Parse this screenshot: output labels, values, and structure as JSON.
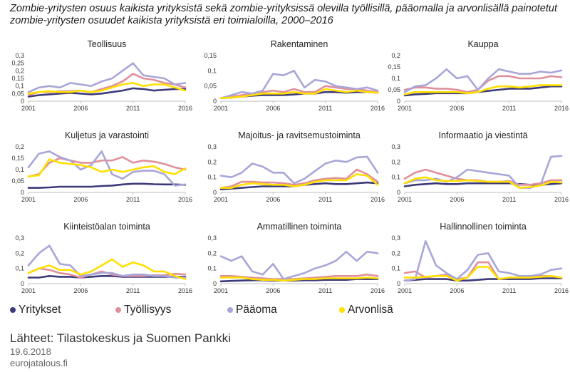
{
  "title": "Zombie-yritysten osuus kaikista yrityksistä sekä zombie-yrityksissä olevilla työllisillä, pääomalla ja arvonlisällä painotetut zombie-yritysten osuudet kaikista yrityksistä eri toimialoilla, 2000–2016",
  "legend": [
    {
      "label": "Yritykset",
      "color": "#3d3a7a"
    },
    {
      "label": "Työllisyys",
      "color": "#e0909a"
    },
    {
      "label": "Pääoma",
      "color": "#a8a6d8"
    },
    {
      "label": "Arvonlisä",
      "color": "#ffe000"
    }
  ],
  "sources": "Lähteet: Tilastokeskus ja Suomen Pankki",
  "date": "19.6.2018",
  "site": "eurojatalous.fi",
  "chart_data": [
    {
      "type": "line",
      "title": "Teollisuus",
      "x": [
        2001,
        2002,
        2003,
        2004,
        2005,
        2006,
        2007,
        2008,
        2009,
        2010,
        2011,
        2012,
        2013,
        2014,
        2015,
        2016
      ],
      "xticks": [
        "2001",
        "2006",
        "2011",
        "2016"
      ],
      "ylim": [
        0,
        0.3
      ],
      "yticks": [
        "0",
        "0,05",
        "0,1",
        "0,15",
        "0,2",
        "0,25",
        "0,3"
      ],
      "series": [
        {
          "name": "Yritykset",
          "values": [
            0.03,
            0.04,
            0.045,
            0.05,
            0.055,
            0.05,
            0.045,
            0.05,
            0.06,
            0.07,
            0.085,
            0.08,
            0.07,
            0.075,
            0.08,
            0.08
          ]
        },
        {
          "name": "Työllisyys",
          "values": [
            0.04,
            0.06,
            0.06,
            0.065,
            0.065,
            0.07,
            0.06,
            0.08,
            0.1,
            0.13,
            0.18,
            0.15,
            0.14,
            0.12,
            0.11,
            0.09
          ]
        },
        {
          "name": "Pääoma",
          "values": [
            0.06,
            0.09,
            0.1,
            0.09,
            0.12,
            0.11,
            0.1,
            0.13,
            0.15,
            0.2,
            0.25,
            0.17,
            0.16,
            0.15,
            0.11,
            0.12
          ]
        },
        {
          "name": "Arvonlisä",
          "values": [
            0.05,
            0.06,
            0.065,
            0.06,
            0.06,
            0.07,
            0.06,
            0.07,
            0.09,
            0.11,
            0.12,
            0.1,
            0.11,
            0.11,
            0.09,
            0.07
          ]
        }
      ]
    },
    {
      "type": "line",
      "title": "Rakentaminen",
      "x": [
        2001,
        2002,
        2003,
        2004,
        2005,
        2006,
        2007,
        2008,
        2009,
        2010,
        2011,
        2012,
        2013,
        2014,
        2015,
        2016
      ],
      "xticks": [
        "2001",
        "2006",
        "2011",
        "2016"
      ],
      "ylim": [
        0,
        0.15
      ],
      "yticks": [
        "0",
        "0,05",
        "0,1",
        "0,15"
      ],
      "series": [
        {
          "name": "Yritykset",
          "values": [
            0.01,
            0.012,
            0.015,
            0.018,
            0.02,
            0.02,
            0.02,
            0.022,
            0.025,
            0.025,
            0.03,
            0.03,
            0.028,
            0.03,
            0.03,
            0.028
          ]
        },
        {
          "name": "Työllisyys",
          "values": [
            0.01,
            0.015,
            0.02,
            0.025,
            0.03,
            0.035,
            0.03,
            0.04,
            0.03,
            0.03,
            0.05,
            0.045,
            0.04,
            0.04,
            0.035,
            0.03
          ]
        },
        {
          "name": "Pääoma",
          "values": [
            0.01,
            0.02,
            0.03,
            0.025,
            0.035,
            0.09,
            0.085,
            0.1,
            0.045,
            0.07,
            0.065,
            0.05,
            0.045,
            0.04,
            0.045,
            0.035
          ]
        },
        {
          "name": "Arvonlisä",
          "values": [
            0.01,
            0.012,
            0.015,
            0.02,
            0.025,
            0.025,
            0.025,
            0.03,
            0.025,
            0.025,
            0.04,
            0.035,
            0.03,
            0.035,
            0.03,
            0.028
          ]
        }
      ]
    },
    {
      "type": "line",
      "title": "Kauppa",
      "x": [
        2001,
        2002,
        2003,
        2004,
        2005,
        2006,
        2007,
        2008,
        2009,
        2010,
        2011,
        2012,
        2013,
        2014,
        2015,
        2016
      ],
      "xticks": [
        "2001",
        "2006",
        "2011",
        "2016"
      ],
      "ylim": [
        0,
        0.2
      ],
      "yticks": [
        "0",
        "0,05",
        "0,1",
        "0,15",
        "0,2"
      ],
      "series": [
        {
          "name": "Yritykset",
          "values": [
            0.025,
            0.03,
            0.032,
            0.035,
            0.035,
            0.035,
            0.035,
            0.04,
            0.045,
            0.05,
            0.055,
            0.055,
            0.055,
            0.06,
            0.065,
            0.065
          ]
        },
        {
          "name": "Työllisyys",
          "values": [
            0.05,
            0.06,
            0.06,
            0.055,
            0.055,
            0.05,
            0.04,
            0.05,
            0.09,
            0.11,
            0.11,
            0.1,
            0.1,
            0.1,
            0.11,
            0.105
          ]
        },
        {
          "name": "Pääoma",
          "values": [
            0.04,
            0.065,
            0.07,
            0.1,
            0.14,
            0.1,
            0.11,
            0.05,
            0.1,
            0.14,
            0.13,
            0.12,
            0.12,
            0.13,
            0.125,
            0.135
          ]
        },
        {
          "name": "Arvonlisä",
          "values": [
            0.03,
            0.04,
            0.04,
            0.04,
            0.04,
            0.04,
            0.035,
            0.04,
            0.055,
            0.065,
            0.065,
            0.06,
            0.065,
            0.07,
            0.07,
            0.07
          ]
        }
      ]
    },
    {
      "type": "line",
      "title": "Kuljetus ja varastointi",
      "x": [
        2001,
        2002,
        2003,
        2004,
        2005,
        2006,
        2007,
        2008,
        2009,
        2010,
        2011,
        2012,
        2013,
        2014,
        2015,
        2016
      ],
      "xticks": [
        "2001",
        "2006",
        "2011",
        "2016"
      ],
      "ylim": [
        0,
        0.2
      ],
      "yticks": [
        "0",
        "0,05",
        "0,1",
        "0,15",
        "0,2"
      ],
      "series": [
        {
          "name": "Yritykset",
          "values": [
            0.02,
            0.02,
            0.022,
            0.025,
            0.025,
            0.025,
            0.025,
            0.028,
            0.03,
            0.035,
            0.038,
            0.038,
            0.036,
            0.035,
            0.035,
            0.033
          ]
        },
        {
          "name": "Työllisyys",
          "values": [
            0.07,
            0.08,
            0.13,
            0.15,
            0.14,
            0.13,
            0.13,
            0.14,
            0.14,
            0.155,
            0.13,
            0.14,
            0.135,
            0.125,
            0.11,
            0.1
          ]
        },
        {
          "name": "Pääoma",
          "values": [
            0.11,
            0.17,
            0.18,
            0.155,
            0.14,
            0.1,
            0.12,
            0.18,
            0.08,
            0.06,
            0.09,
            0.095,
            0.095,
            0.08,
            0.03,
            0.035
          ]
        },
        {
          "name": "Arvonlisä",
          "values": [
            0.07,
            0.075,
            0.145,
            0.13,
            0.125,
            0.12,
            0.11,
            0.09,
            0.1,
            0.09,
            0.1,
            0.11,
            0.115,
            0.09,
            0.08,
            0.105
          ]
        }
      ]
    },
    {
      "type": "line",
      "title": "Majoitus- ja ravitsemustoiminta",
      "x": [
        2001,
        2002,
        2003,
        2004,
        2005,
        2006,
        2007,
        2008,
        2009,
        2010,
        2011,
        2012,
        2013,
        2014,
        2015,
        2016
      ],
      "xticks": [
        "2001",
        "2006",
        "2011",
        "2016"
      ],
      "ylim": [
        0,
        0.3
      ],
      "yticks": [
        "0",
        "0,1",
        "0,2",
        "0,3"
      ],
      "series": [
        {
          "name": "Yritykset",
          "values": [
            0.02,
            0.025,
            0.03,
            0.035,
            0.04,
            0.04,
            0.04,
            0.04,
            0.05,
            0.055,
            0.06,
            0.055,
            0.055,
            0.06,
            0.065,
            0.06
          ]
        },
        {
          "name": "Työllisyys",
          "values": [
            0.03,
            0.04,
            0.07,
            0.07,
            0.065,
            0.065,
            0.06,
            0.05,
            0.06,
            0.08,
            0.09,
            0.095,
            0.09,
            0.15,
            0.12,
            0.07
          ]
        },
        {
          "name": "Pääoma",
          "values": [
            0.11,
            0.1,
            0.13,
            0.19,
            0.17,
            0.13,
            0.13,
            0.06,
            0.09,
            0.14,
            0.19,
            0.21,
            0.2,
            0.23,
            0.235,
            0.13
          ]
        },
        {
          "name": "Arvonlisä",
          "values": [
            0.03,
            0.03,
            0.05,
            0.06,
            0.055,
            0.05,
            0.05,
            0.04,
            0.05,
            0.07,
            0.08,
            0.08,
            0.08,
            0.12,
            0.11,
            0.05
          ]
        }
      ]
    },
    {
      "type": "line",
      "title": "Informaatio ja viestintä",
      "x": [
        2001,
        2002,
        2003,
        2004,
        2005,
        2006,
        2007,
        2008,
        2009,
        2010,
        2011,
        2012,
        2013,
        2014,
        2015,
        2016
      ],
      "xticks": [
        "2001",
        "2006",
        "2011",
        "2016"
      ],
      "ylim": [
        0,
        0.3
      ],
      "yticks": [
        "0",
        "0,1",
        "0,2",
        "0,3"
      ],
      "series": [
        {
          "name": "Yritykset",
          "values": [
            0.04,
            0.05,
            0.055,
            0.06,
            0.055,
            0.055,
            0.06,
            0.06,
            0.06,
            0.06,
            0.06,
            0.055,
            0.05,
            0.05,
            0.055,
            0.06
          ]
        },
        {
          "name": "Työllisyys",
          "values": [
            0.09,
            0.13,
            0.15,
            0.13,
            0.11,
            0.09,
            0.08,
            0.08,
            0.07,
            0.07,
            0.075,
            0.05,
            0.05,
            0.06,
            0.08,
            0.08
          ]
        },
        {
          "name": "Pääoma",
          "values": [
            0.06,
            0.08,
            0.08,
            0.09,
            0.07,
            0.1,
            0.15,
            0.14,
            0.13,
            0.12,
            0.11,
            0.03,
            0.03,
            0.05,
            0.235,
            0.24
          ]
        },
        {
          "name": "Arvonlisä",
          "values": [
            0.06,
            0.09,
            0.1,
            0.08,
            0.075,
            0.075,
            0.08,
            0.075,
            0.07,
            0.07,
            0.07,
            0.03,
            0.035,
            0.045,
            0.07,
            0.065
          ]
        }
      ]
    },
    {
      "type": "line",
      "title": "Kiinteistöalan toiminta",
      "x": [
        2001,
        2002,
        2003,
        2004,
        2005,
        2006,
        2007,
        2008,
        2009,
        2010,
        2011,
        2012,
        2013,
        2014,
        2015,
        2016
      ],
      "xticks": [
        "2001",
        "2006",
        "2011",
        "2016"
      ],
      "ylim": [
        0,
        0.3
      ],
      "yticks": [
        "0",
        "0,1",
        "0,2",
        "0,3"
      ],
      "series": [
        {
          "name": "Yritykset",
          "values": [
            0.04,
            0.04,
            0.05,
            0.045,
            0.045,
            0.04,
            0.045,
            0.05,
            0.05,
            0.045,
            0.045,
            0.045,
            0.045,
            0.045,
            0.045,
            0.045
          ]
        },
        {
          "name": "Työllisyys",
          "values": [
            0.07,
            0.1,
            0.09,
            0.07,
            0.06,
            0.04,
            0.06,
            0.08,
            0.06,
            0.05,
            0.05,
            0.05,
            0.055,
            0.055,
            0.065,
            0.06
          ]
        },
        {
          "name": "Pääoma",
          "values": [
            0.12,
            0.2,
            0.25,
            0.13,
            0.12,
            0.05,
            0.06,
            0.07,
            0.07,
            0.05,
            0.06,
            0.06,
            0.05,
            0.05,
            0.04,
            0.04
          ]
        },
        {
          "name": "Arvonlisä",
          "values": [
            0.07,
            0.1,
            0.12,
            0.09,
            0.09,
            0.06,
            0.08,
            0.12,
            0.16,
            0.11,
            0.14,
            0.12,
            0.08,
            0.08,
            0.05,
            0.03
          ]
        }
      ]
    },
    {
      "type": "line",
      "title": "Ammatillinen toiminta",
      "x": [
        2001,
        2002,
        2003,
        2004,
        2005,
        2006,
        2007,
        2008,
        2009,
        2010,
        2011,
        2012,
        2013,
        2014,
        2015,
        2016
      ],
      "xticks": [
        "2001",
        "2006",
        "2011",
        "2016"
      ],
      "ylim": [
        0,
        0.3
      ],
      "yticks": [
        "0",
        "0,1",
        "0,2",
        "0,3"
      ],
      "series": [
        {
          "name": "Yritykset",
          "values": [
            0.015,
            0.018,
            0.02,
            0.022,
            0.022,
            0.02,
            0.02,
            0.02,
            0.022,
            0.022,
            0.025,
            0.025,
            0.025,
            0.03,
            0.03,
            0.03
          ]
        },
        {
          "name": "Työllisyys",
          "values": [
            0.05,
            0.05,
            0.045,
            0.04,
            0.035,
            0.03,
            0.03,
            0.03,
            0.035,
            0.04,
            0.045,
            0.05,
            0.05,
            0.05,
            0.06,
            0.05
          ]
        },
        {
          "name": "Pääoma",
          "values": [
            0.18,
            0.15,
            0.18,
            0.08,
            0.06,
            0.13,
            0.03,
            0.05,
            0.07,
            0.1,
            0.12,
            0.15,
            0.21,
            0.15,
            0.21,
            0.2
          ]
        },
        {
          "name": "Arvonlisä",
          "values": [
            0.04,
            0.04,
            0.04,
            0.03,
            0.025,
            0.025,
            0.02,
            0.025,
            0.03,
            0.03,
            0.035,
            0.035,
            0.035,
            0.035,
            0.04,
            0.035
          ]
        }
      ]
    },
    {
      "type": "line",
      "title": "Hallinnollinen toiminta",
      "x": [
        2001,
        2002,
        2003,
        2004,
        2005,
        2006,
        2007,
        2008,
        2009,
        2010,
        2011,
        2012,
        2013,
        2014,
        2015,
        2016
      ],
      "xticks": [
        "2001",
        "2006",
        "2011",
        "2016"
      ],
      "ylim": [
        0,
        0.3
      ],
      "yticks": [
        "0",
        "0,1",
        "0,2",
        "0,3"
      ],
      "series": [
        {
          "name": "Yritykset",
          "values": [
            0.02,
            0.025,
            0.03,
            0.03,
            0.03,
            0.02,
            0.02,
            0.025,
            0.03,
            0.03,
            0.03,
            0.03,
            0.03,
            0.035,
            0.035,
            0.035
          ]
        },
        {
          "name": "Työllisyys",
          "values": [
            0.07,
            0.08,
            0.04,
            0.05,
            0.06,
            0.03,
            0.04,
            0.14,
            0.14,
            0.03,
            0.04,
            0.04,
            0.04,
            0.05,
            0.05,
            0.04
          ]
        },
        {
          "name": "Pääoma",
          "values": [
            0.02,
            0.03,
            0.28,
            0.12,
            0.07,
            0.03,
            0.09,
            0.19,
            0.2,
            0.08,
            0.07,
            0.05,
            0.05,
            0.06,
            0.09,
            0.1
          ]
        },
        {
          "name": "Arvonlisä",
          "values": [
            0.04,
            0.04,
            0.045,
            0.05,
            0.05,
            0.02,
            0.04,
            0.11,
            0.11,
            0.03,
            0.04,
            0.04,
            0.04,
            0.045,
            0.05,
            0.04
          ]
        }
      ]
    }
  ]
}
